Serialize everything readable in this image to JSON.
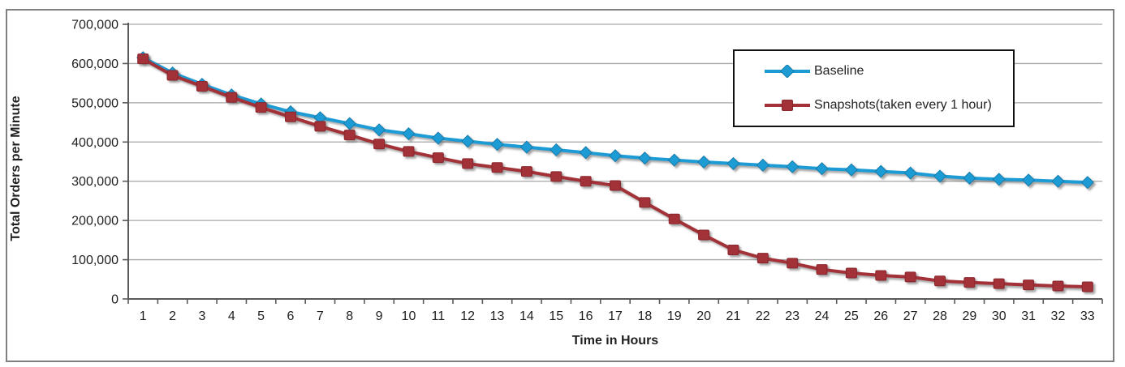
{
  "chart_data": {
    "type": "line",
    "title": "",
    "xlabel": "Time in Hours",
    "ylabel": "Total Orders per Minute",
    "categories": [
      1,
      2,
      3,
      4,
      5,
      6,
      7,
      8,
      9,
      10,
      11,
      12,
      13,
      14,
      15,
      16,
      17,
      18,
      19,
      20,
      21,
      22,
      23,
      24,
      25,
      26,
      27,
      28,
      29,
      30,
      31,
      32,
      33
    ],
    "xtick_labels": [
      "1",
      "2",
      "3",
      "4",
      "5",
      "6",
      "7",
      "8",
      "9",
      "10",
      "11",
      "12",
      "13",
      "14",
      "15",
      "16",
      "17",
      "18",
      "19",
      "20",
      "21",
      "22",
      "23",
      "24",
      "25",
      "26",
      "27",
      "28",
      "29",
      "30",
      "31",
      "32",
      "33"
    ],
    "ytick_labels": [
      "0",
      "100,000",
      "200,000",
      "300,000",
      "400,000",
      "500,000",
      "600,000",
      "700,000"
    ],
    "ylim": [
      0,
      700000
    ],
    "ytick_step": 100000,
    "grid": "horizontal-only",
    "legend_position": "top-right-boxed",
    "series": [
      {
        "name": "Baseline",
        "marker": "diamond",
        "color": "#1f9bd4",
        "marker_edge": "#147cab",
        "values": [
          615000,
          576000,
          547000,
          520000,
          497000,
          477000,
          462000,
          447000,
          431000,
          421000,
          410000,
          402000,
          394000,
          387000,
          380000,
          373000,
          365000,
          359000,
          354000,
          349000,
          345000,
          341000,
          337000,
          332000,
          329000,
          325000,
          321000,
          313000,
          308000,
          305000,
          303000,
          300000,
          297000
        ]
      },
      {
        "name": "Snapshots(taken every 1 hour)",
        "marker": "square",
        "color": "#a33138",
        "marker_edge": "#8a262d",
        "values": [
          612000,
          570000,
          542000,
          514000,
          488000,
          464000,
          440000,
          418000,
          395000,
          376000,
          360000,
          345000,
          335000,
          325000,
          312000,
          300000,
          289000,
          246000,
          204000,
          163000,
          125000,
          104000,
          91000,
          75000,
          66000,
          60000,
          56000,
          46000,
          42000,
          39000,
          36000,
          33000,
          31000
        ]
      }
    ]
  },
  "colors": {
    "frame_border": "#808080",
    "gridline": "#a6a6a6",
    "axis_line": "#595959",
    "tick_text": "#1f1f1f",
    "background": "#ffffff",
    "legend_border": "#111111"
  }
}
